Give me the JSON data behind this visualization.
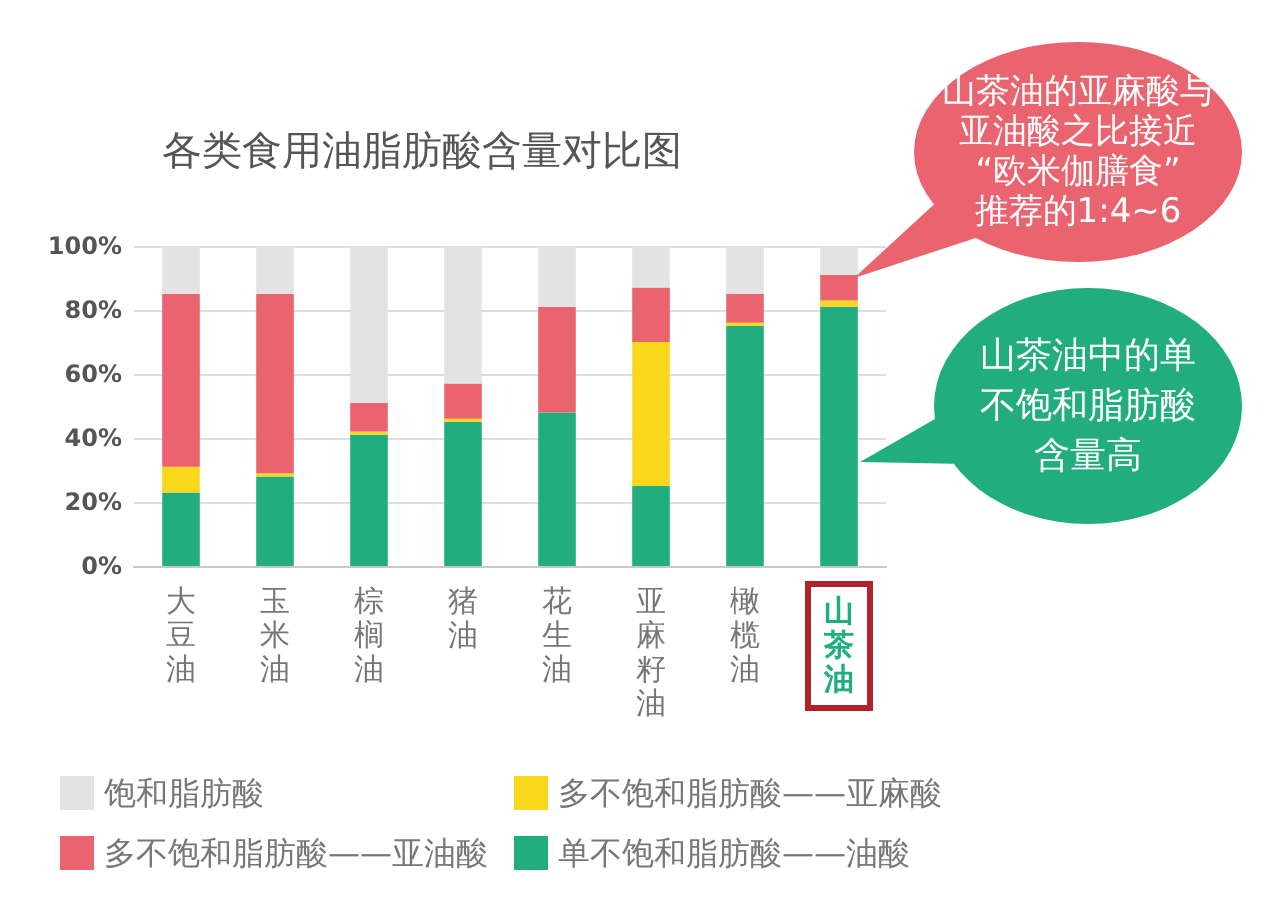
{
  "chart_data": {
    "type": "bar",
    "title": "各类食用油脂肪酸含量对比图",
    "categories": [
      "大豆油",
      "玉米油",
      "棕榈油",
      "猪油",
      "花生油",
      "亚麻籽油",
      "橄榄油",
      "山茶油"
    ],
    "stacked": true,
    "series": [
      {
        "name": "单不饱和脂肪酸——油酸",
        "color": "#22ad7f",
        "values": [
          23,
          28,
          41,
          45,
          48,
          25,
          75,
          81
        ]
      },
      {
        "name": "多不饱和脂肪酸——亚麻酸",
        "color": "#f9d71c",
        "values": [
          8,
          1,
          1,
          1,
          0,
          45,
          1,
          2
        ]
      },
      {
        "name": "多不饱和脂肪酸——亚油酸",
        "color": "#e9646e",
        "values": [
          54,
          56,
          9,
          11,
          33,
          17,
          9,
          8
        ]
      },
      {
        "name": "饱和脂肪酸",
        "color": "#e3e3e3",
        "values": [
          15,
          15,
          49,
          43,
          19,
          13,
          15,
          9
        ]
      }
    ],
    "ylim": [
      0,
      100
    ],
    "yticks": [
      {
        "value": 0,
        "label": "0%"
      },
      {
        "value": 20,
        "label": "20%"
      },
      {
        "value": 40,
        "label": "40%"
      },
      {
        "value": 60,
        "label": "60%"
      },
      {
        "value": 80,
        "label": "80%"
      },
      {
        "value": 100,
        "label": "100%"
      }
    ],
    "grid": "y",
    "legend": "bottom",
    "annotations": [
      "山茶油的亚麻酸与亚油酸之比接近“欧米伽膳食”推荐的1:4~6",
      "山茶油中的单不饱和脂肪酸含量高"
    ]
  }
}
